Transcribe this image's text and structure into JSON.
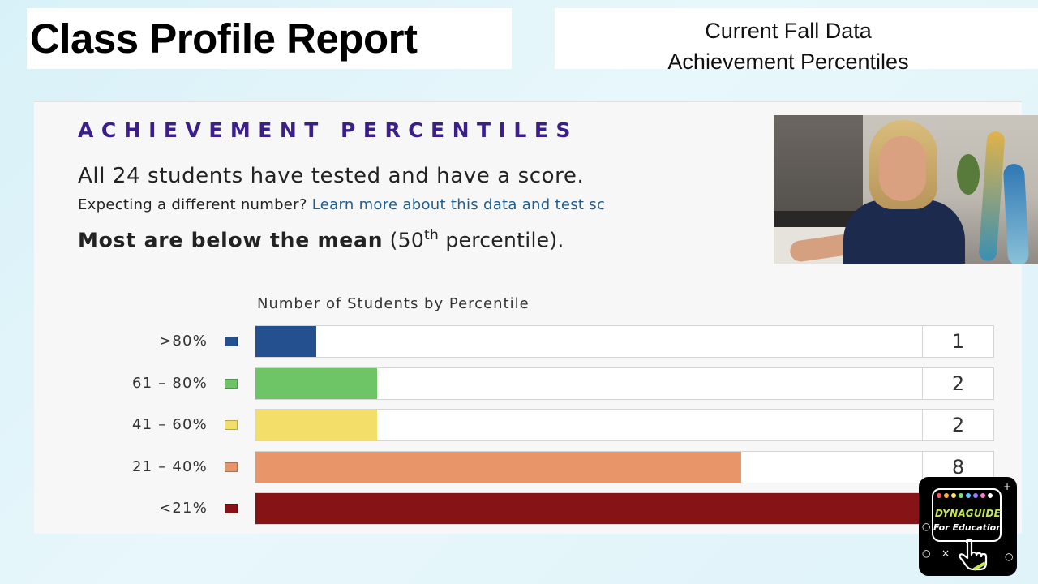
{
  "header": {
    "title": "Class Profile Report",
    "subtitle_line1": "Current Fall Data",
    "subtitle_line2": "Achievement Percentiles"
  },
  "report": {
    "section_heading": "ACHIEVEMENT PERCENTILES",
    "summary": "All 24 students have tested and have a score.",
    "expect_prefix": "Expecting a different number?",
    "expect_link": "Learn more about this data and test sc",
    "mean_bold": "Most are below the mean",
    "mean_open": "(50",
    "mean_sup": "th",
    "mean_close": "percentile)."
  },
  "chart_data": {
    "type": "bar",
    "title": "Number of Students by Percentile",
    "categories": [
      ">80%",
      "61 – 80%",
      "41 – 60%",
      "21 – 40%",
      "<21%"
    ],
    "values": [
      1,
      2,
      2,
      8,
      11
    ],
    "value_labels": [
      "1",
      "2",
      "2",
      "8",
      ""
    ],
    "colors": [
      "#24508f",
      "#6dc565",
      "#f3de6a",
      "#e8956a",
      "#861316"
    ],
    "xlim": [
      0,
      11
    ],
    "orientation": "horizontal"
  },
  "video": {
    "icon": "presenter-video-feed"
  },
  "logo": {
    "name": "DYNAGUIDE",
    "tagline": "For Education",
    "dot_colors": [
      "#ff5a5a",
      "#ffb347",
      "#ffe066",
      "#7be07b",
      "#5ac8ff",
      "#9b7bff",
      "#ff7bd0",
      "#ffffff"
    ]
  }
}
